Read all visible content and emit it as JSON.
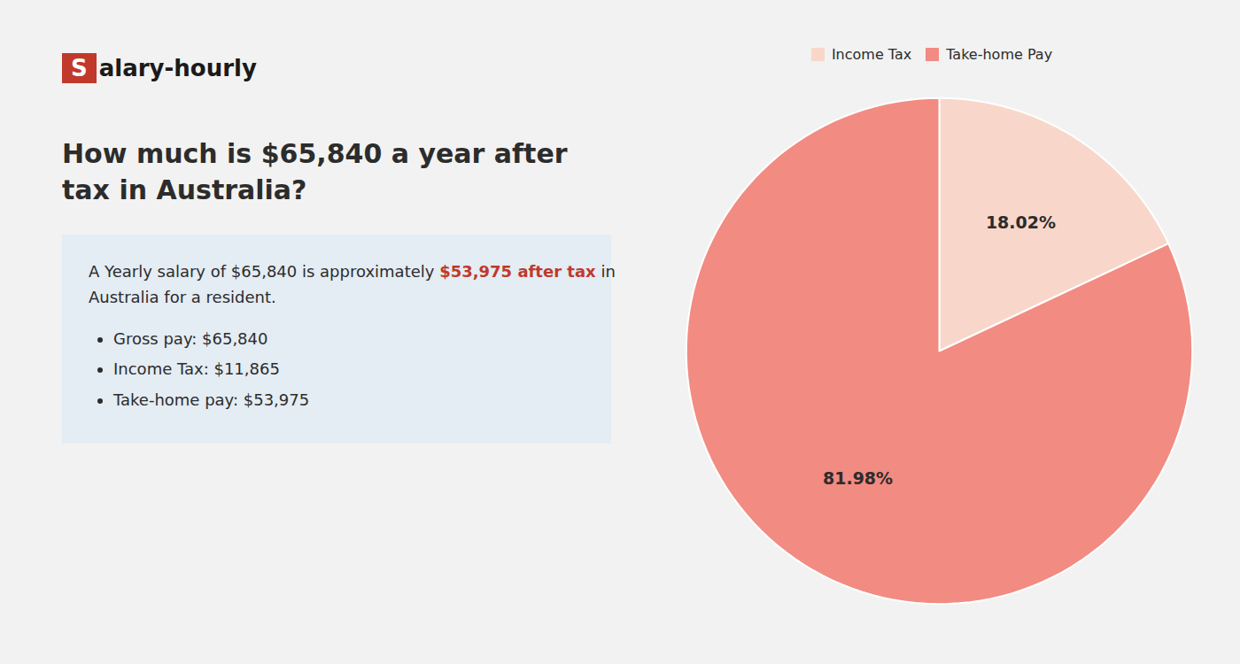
{
  "chart_data": {
    "type": "pie",
    "title": "How much is $65,840 a year after tax in Australia?",
    "logo": {
      "text": "Salary-hourly",
      "color": "#c0392b"
    },
    "summary": [
      [
        {
          "text": "A Yearly salary of $65,840 is approximately "
        },
        {
          "text": "$53,975 after tax",
          "color": "#c0392b"
        },
        {
          "text": " in"
        }
      ],
      [
        {
          "text": "Australia for a resident."
        }
      ]
    ],
    "bullets": [
      "Gross pay: $65,840",
      "Income Tax: $11,865",
      "Take-home pay: $53,975"
    ],
    "categories": [
      "Income Tax",
      "Take-home Pay"
    ],
    "values": [
      18.02,
      81.98
    ],
    "value_labels": [
      "18.02%",
      "81.98%"
    ],
    "colors": [
      "#f8d7ca",
      "#f28b82"
    ],
    "data_labels": true,
    "legend": "top"
  }
}
